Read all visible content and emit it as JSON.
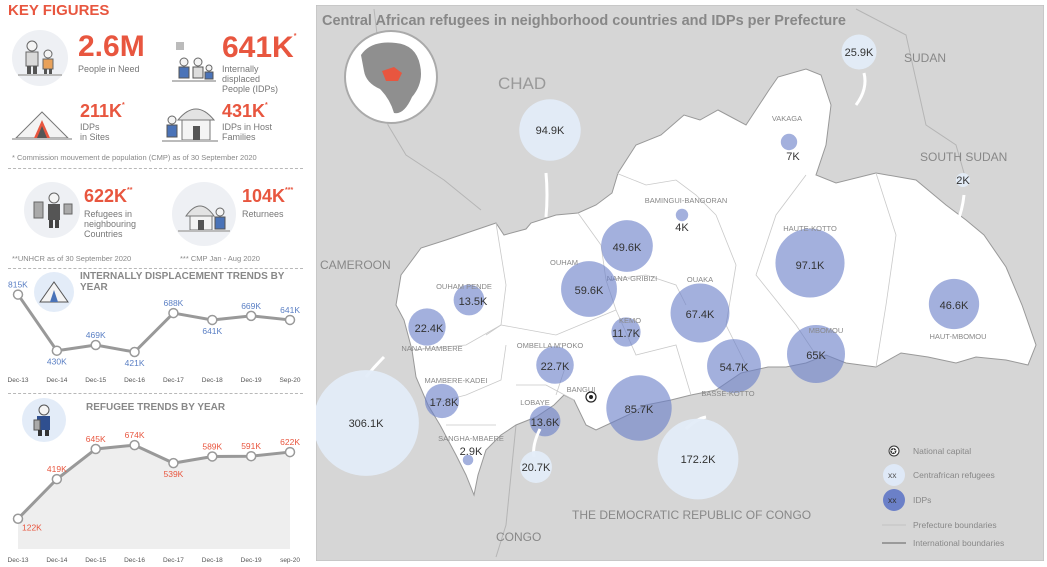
{
  "key_figures": {
    "title": "KEY FIGURES",
    "people_in_need": {
      "value": "2.6M",
      "label": "People in Need"
    },
    "idps": {
      "value": "641K",
      "sup": "*",
      "label_lines": [
        "Internally",
        "displaced",
        "People (IDPs)"
      ]
    },
    "idps_sites": {
      "value": "211K",
      "sup": "*",
      "label_lines": [
        "IDPs",
        "in Sites"
      ]
    },
    "idps_host": {
      "value": "431K",
      "sup": "*",
      "label_lines": [
        "IDPs in Host",
        "Families"
      ]
    },
    "note_cmp": "* Commission mouvement de population (CMP) as of 30 September 2020",
    "refugees": {
      "value": "622K",
      "sup": "**",
      "label_lines": [
        "Refugees in",
        "neighbouring",
        "Countries"
      ]
    },
    "returnees": {
      "value": "104K",
      "sup": "***",
      "label": "Returnees"
    },
    "note_unhcr": "**UNHCR as of 30 September 2020",
    "note_cmp2": "*** CMP Jan - Aug 2020"
  },
  "colors": {
    "accent": "#e8563f",
    "idp_blue": "#6b80c8",
    "refugee_blue": "#dfe9f7",
    "line_gray": "#999999",
    "map_land": "#d6d6d6",
    "car_land": "#ffffff"
  },
  "chart_data": [
    {
      "type": "line",
      "title": "INTERNALLY DISPLACEMENT TRENDS BY YEAR",
      "categories": [
        "Dec-13",
        "Dec-14",
        "Dec-15",
        "Dec-16",
        "Dec-17",
        "Dec-18",
        "Dec-19",
        "Sep-20"
      ],
      "values": [
        815,
        430,
        469,
        421,
        688,
        641,
        669,
        641
      ],
      "data_labels": [
        "815K",
        "430K",
        "469K",
        "421K",
        "688K",
        "641K",
        "669K",
        "641K"
      ],
      "ylim": [
        380,
        860
      ]
    },
    {
      "type": "line",
      "title": "REFUGEE TRENDS BY YEAR",
      "categories": [
        "Dec-13",
        "Dec-14",
        "Dec-15",
        "Dec-16",
        "Dec-17",
        "Dec-18",
        "Dec-19",
        "sep-20"
      ],
      "values": [
        122,
        419,
        645,
        674,
        539,
        589,
        591,
        622
      ],
      "data_labels": [
        "122K",
        "419K",
        "645K",
        "674K",
        "539K",
        "589K",
        "591K",
        "622K"
      ],
      "ylim": [
        60,
        720
      ]
    },
    {
      "type": "map",
      "title": "Central African refugees in neighborhood countries and IDPs per Prefecture",
      "countries": [
        "CHAD",
        "SUDAN",
        "SOUTH SUDAN",
        "CAMEROON",
        "THE DEMOCRATIC REPUBLIC OF CONGO",
        "CONGO"
      ],
      "idps": [
        {
          "prefecture": "VAKAGA",
          "value": 7,
          "label": "7K"
        },
        {
          "prefecture": "BAMINGUI-BANGORAN",
          "value": 4,
          "label": "4K"
        },
        {
          "prefecture": "HAUTE-KOTTO",
          "value": 97.1,
          "label": "97.1K"
        },
        {
          "prefecture": "HAUT-MBOMOU",
          "value": 46.6,
          "label": "46.6K"
        },
        {
          "prefecture": "MBOMOU",
          "value": 65,
          "label": "65K"
        },
        {
          "prefecture": "BASSE-KOTTO",
          "value": 54.7,
          "label": "54.7K"
        },
        {
          "prefecture": "OUAKA",
          "value": 67.4,
          "label": "67.4K"
        },
        {
          "prefecture": "NANA-GRIBIZI",
          "value": 49.6,
          "label": "49.6K"
        },
        {
          "prefecture": "KEMO",
          "value": 11.7,
          "label": "11.7K"
        },
        {
          "prefecture": "OUHAM",
          "value": 59.6,
          "label": "59.6K"
        },
        {
          "prefecture": "OUHAM PENDE",
          "value": 13.5,
          "label": "13.5K"
        },
        {
          "prefecture": "NANA-MAMBERE",
          "value": 22.4,
          "label": "22.4K"
        },
        {
          "prefecture": "OMBELLA M'POKO",
          "value": 22.7,
          "label": "22.7K"
        },
        {
          "prefecture": "BANGUI",
          "value": 85.7,
          "label": "85.7K"
        },
        {
          "prefecture": "MAMBERE-KADEI",
          "value": 17.8,
          "label": "17.8K"
        },
        {
          "prefecture": "LOBAYE",
          "value": 13.6,
          "label": "13.6K"
        },
        {
          "prefecture": "SANGHA-MBAERE",
          "value": 2.9,
          "label": "2.9K"
        }
      ],
      "refugees": [
        {
          "country": "CHAD",
          "value": 94.9,
          "label": "94.9K"
        },
        {
          "country": "SUDAN",
          "value": 25.9,
          "label": "25.9K"
        },
        {
          "country": "SOUTH SUDAN",
          "value": 2,
          "label": "2K"
        },
        {
          "country": "CAMEROON",
          "value": 306.1,
          "label": "306.1K"
        },
        {
          "country": "CONGO",
          "value": 20.7,
          "label": "20.7K"
        },
        {
          "country": "THE DEMOCRATIC REPUBLIC OF CONGO",
          "value": 172.2,
          "label": "172.2K"
        }
      ],
      "legend": {
        "position": "bottom-right",
        "national_capital": "National capital",
        "refugee_symbol": "xx",
        "refugee_label": "Centrafrican refugees",
        "idp_symbol": "xx",
        "idp_label": "IDPs",
        "prefecture": "Prefecture boundaries",
        "international": "International boundaries"
      }
    }
  ]
}
